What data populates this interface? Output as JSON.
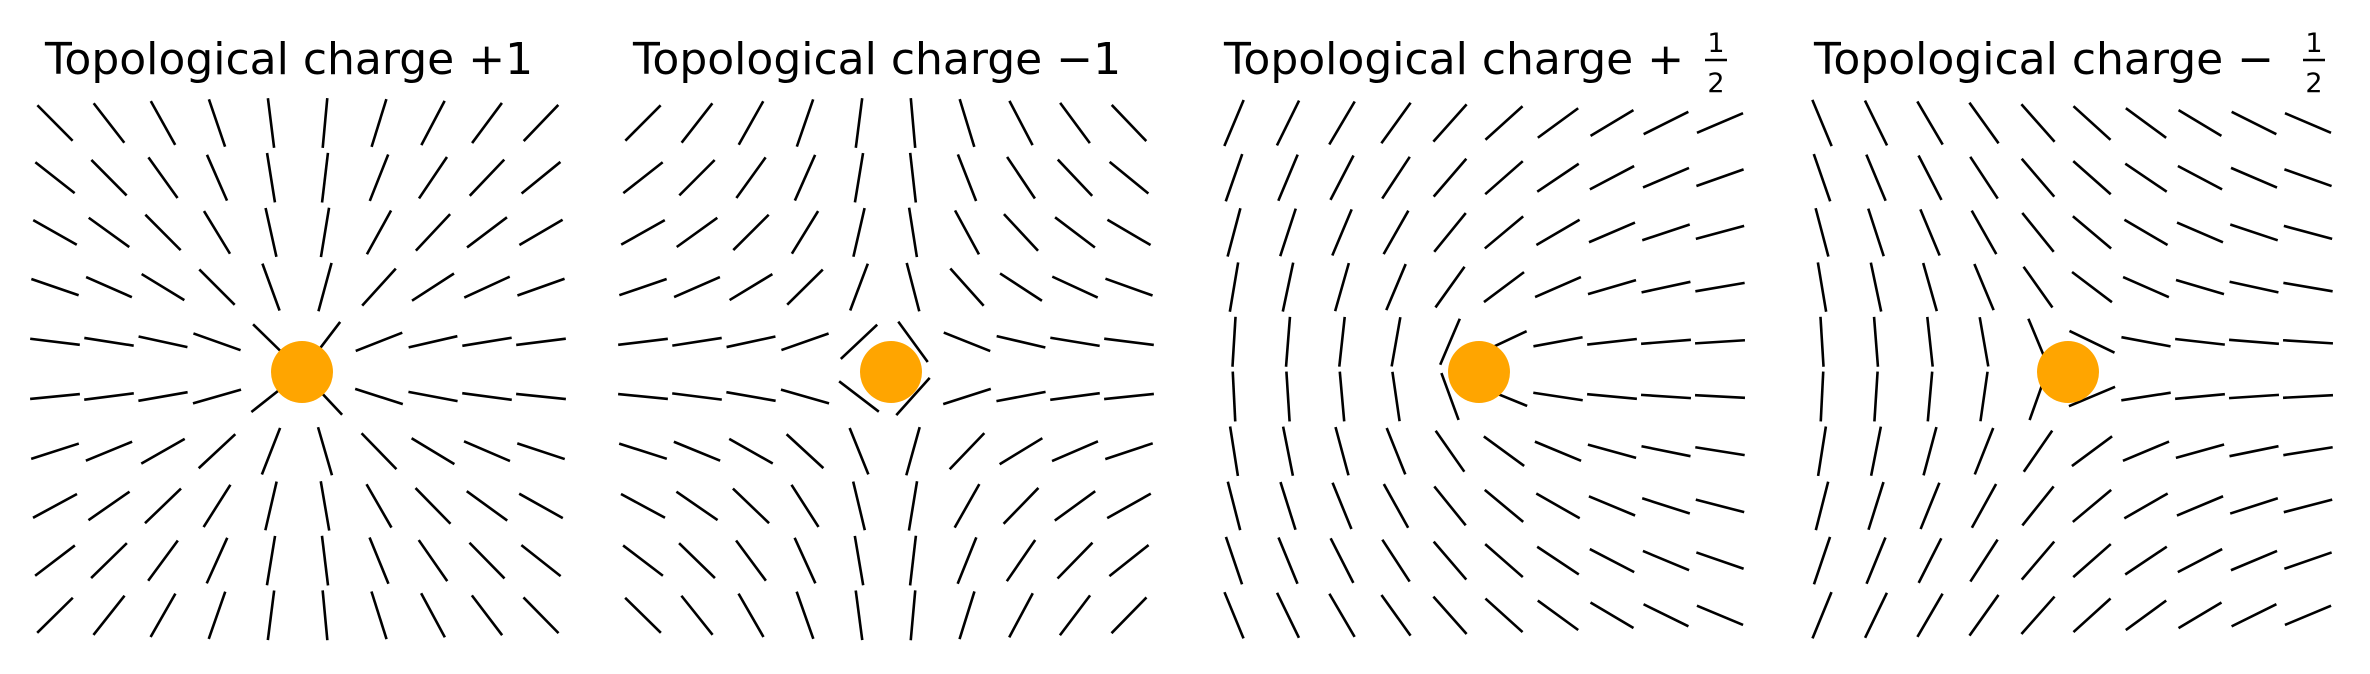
{
  "panels": [
    {
      "title_text": "Topological charge ",
      "sign": "+",
      "charge_num": "1",
      "charge_den": "",
      "charge_value": 1
    },
    {
      "title_text": "Topological charge ",
      "sign": "−",
      "charge_num": "1",
      "charge_den": "",
      "charge_value": -1
    },
    {
      "title_text": "Topological charge ",
      "sign": "+",
      "charge_num": "1",
      "charge_den": "2",
      "charge_value": 0.5
    },
    {
      "title_text": "Topological charge ",
      "sign": "−",
      "charge_num": "1",
      "charge_den": "2",
      "charge_value": -0.5
    }
  ],
  "colors": {
    "director": "#000000",
    "defect_core": "#FFA500",
    "background": "#FFFFFF"
  }
}
